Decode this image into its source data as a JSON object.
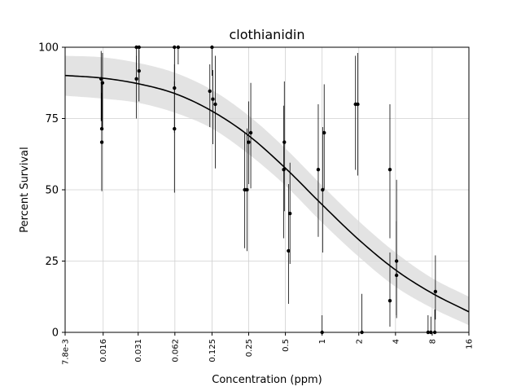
{
  "chart_data": {
    "type": "scatter",
    "title": "clothianidin",
    "xlabel": "Concentration (ppm)",
    "ylabel": "Percent Survival",
    "x_scale": "log2",
    "xlim": [
      0.0078,
      16
    ],
    "ylim": [
      0,
      100
    ],
    "x_ticks": [
      0.0078,
      0.016,
      0.031,
      0.062,
      0.125,
      0.25,
      0.5,
      1,
      2,
      4,
      8,
      16
    ],
    "x_tick_labels": [
      "7.8e-3",
      "0.016",
      "0.031",
      "0.062",
      "0.125",
      "0.25",
      "0.5",
      "1",
      "2",
      "4",
      "8",
      "16"
    ],
    "y_ticks": [
      0,
      25,
      50,
      75,
      100
    ],
    "y_tick_labels": [
      "0",
      "25",
      "50",
      "75",
      "100"
    ],
    "grid": true,
    "colors": {
      "points": "#000000",
      "fit": "#000000",
      "band": "#d9d9d9",
      "grid": "#d0d0d0"
    },
    "fit": {
      "x": [
        0.0078,
        0.0156,
        0.031,
        0.0625,
        0.125,
        0.25,
        0.5,
        1,
        2,
        4,
        8,
        16
      ],
      "y": [
        90.1,
        89.2,
        87.2,
        83.7,
        77.6,
        69.0,
        57.6,
        44.8,
        32.5,
        21.9,
        13.7,
        7.2
      ],
      "lower": [
        83.0,
        82.0,
        80.5,
        77.0,
        71.5,
        62.5,
        51.5,
        38.5,
        26.5,
        16.0,
        8.5,
        2.5
      ],
      "upper": [
        97.0,
        96.5,
        94.5,
        91.0,
        85.0,
        76.0,
        64.5,
        51.5,
        39.0,
        28.0,
        19.0,
        12.5
      ]
    },
    "points": [
      {
        "x": 0.0154,
        "y": 88.9,
        "lo": 74.1,
        "hi": 98.7
      },
      {
        "x": 0.0158,
        "y": 87.5,
        "lo": 72.0,
        "hi": 98.0
      },
      {
        "x": 0.0156,
        "y": 71.4,
        "lo": 50.0,
        "hi": 88.0
      },
      {
        "x": 0.0156,
        "y": 66.7,
        "lo": 49.5,
        "hi": 84.0
      },
      {
        "x": 0.03,
        "y": 88.9,
        "lo": 75.0,
        "hi": 97.0
      },
      {
        "x": 0.03,
        "y": 100,
        "lo": 92.0,
        "hi": 100
      },
      {
        "x": 0.0315,
        "y": 100,
        "lo": 88.0,
        "hi": 100
      },
      {
        "x": 0.0315,
        "y": 91.7,
        "lo": 81.0,
        "hi": 99.0
      },
      {
        "x": 0.0615,
        "y": 100,
        "lo": 85.0,
        "hi": 100
      },
      {
        "x": 0.066,
        "y": 100,
        "lo": 94.0,
        "hi": 100
      },
      {
        "x": 0.0615,
        "y": 85.7,
        "lo": 70.0,
        "hi": 94.0
      },
      {
        "x": 0.0615,
        "y": 71.4,
        "lo": 49.0,
        "hi": 88.0
      },
      {
        "x": 0.125,
        "y": 100,
        "lo": 90.0,
        "hi": 100
      },
      {
        "x": 0.12,
        "y": 84.6,
        "lo": 72.0,
        "hi": 94.0
      },
      {
        "x": 0.127,
        "y": 81.8,
        "lo": 66.0,
        "hi": 92.0
      },
      {
        "x": 0.133,
        "y": 80.0,
        "lo": 57.5,
        "hi": 97.0
      },
      {
        "x": 0.232,
        "y": 50.0,
        "lo": 29.5,
        "hi": 70.0
      },
      {
        "x": 0.242,
        "y": 50.0,
        "lo": 28.5,
        "hi": 71.5
      },
      {
        "x": 0.25,
        "y": 66.7,
        "lo": 52.0,
        "hi": 81.0
      },
      {
        "x": 0.26,
        "y": 70.0,
        "lo": 50.5,
        "hi": 87.5
      },
      {
        "x": 0.485,
        "y": 57.1,
        "lo": 33.0,
        "hi": 79.5
      },
      {
        "x": 0.49,
        "y": 66.7,
        "lo": 42.5,
        "hi": 88.0
      },
      {
        "x": 0.53,
        "y": 28.6,
        "lo": 10.0,
        "hi": 52.0
      },
      {
        "x": 0.545,
        "y": 41.7,
        "lo": 24.0,
        "hi": 59.5
      },
      {
        "x": 0.93,
        "y": 57.1,
        "lo": 33.5,
        "hi": 80.0
      },
      {
        "x": 1.0,
        "y": 0,
        "lo": 0,
        "hi": 6.0
      },
      {
        "x": 1.01,
        "y": 50.0,
        "lo": 28.0,
        "hi": 72.0
      },
      {
        "x": 1.04,
        "y": 70.0,
        "lo": 50.0,
        "hi": 87.0
      },
      {
        "x": 1.88,
        "y": 80.0,
        "lo": 57.0,
        "hi": 97.0
      },
      {
        "x": 1.96,
        "y": 80.0,
        "lo": 55.0,
        "hi": 98.0
      },
      {
        "x": 2.12,
        "y": 0,
        "lo": 0,
        "hi": 13.5
      },
      {
        "x": 3.6,
        "y": 57.1,
        "lo": 33.0,
        "hi": 80.0
      },
      {
        "x": 3.6,
        "y": 11.1,
        "lo": 2.0,
        "hi": 28.0
      },
      {
        "x": 4.08,
        "y": 25.0,
        "lo": 6.0,
        "hi": 53.5
      },
      {
        "x": 4.08,
        "y": 20.0,
        "lo": 5.0,
        "hi": 39.0
      },
      {
        "x": 7.4,
        "y": 0,
        "lo": 0,
        "hi": 6.0
      },
      {
        "x": 7.8,
        "y": 0,
        "lo": 0,
        "hi": 5.5
      },
      {
        "x": 8.4,
        "y": 0,
        "lo": 0,
        "hi": 8.0
      },
      {
        "x": 8.5,
        "y": 14.3,
        "lo": 4.5,
        "hi": 27.0
      }
    ]
  }
}
